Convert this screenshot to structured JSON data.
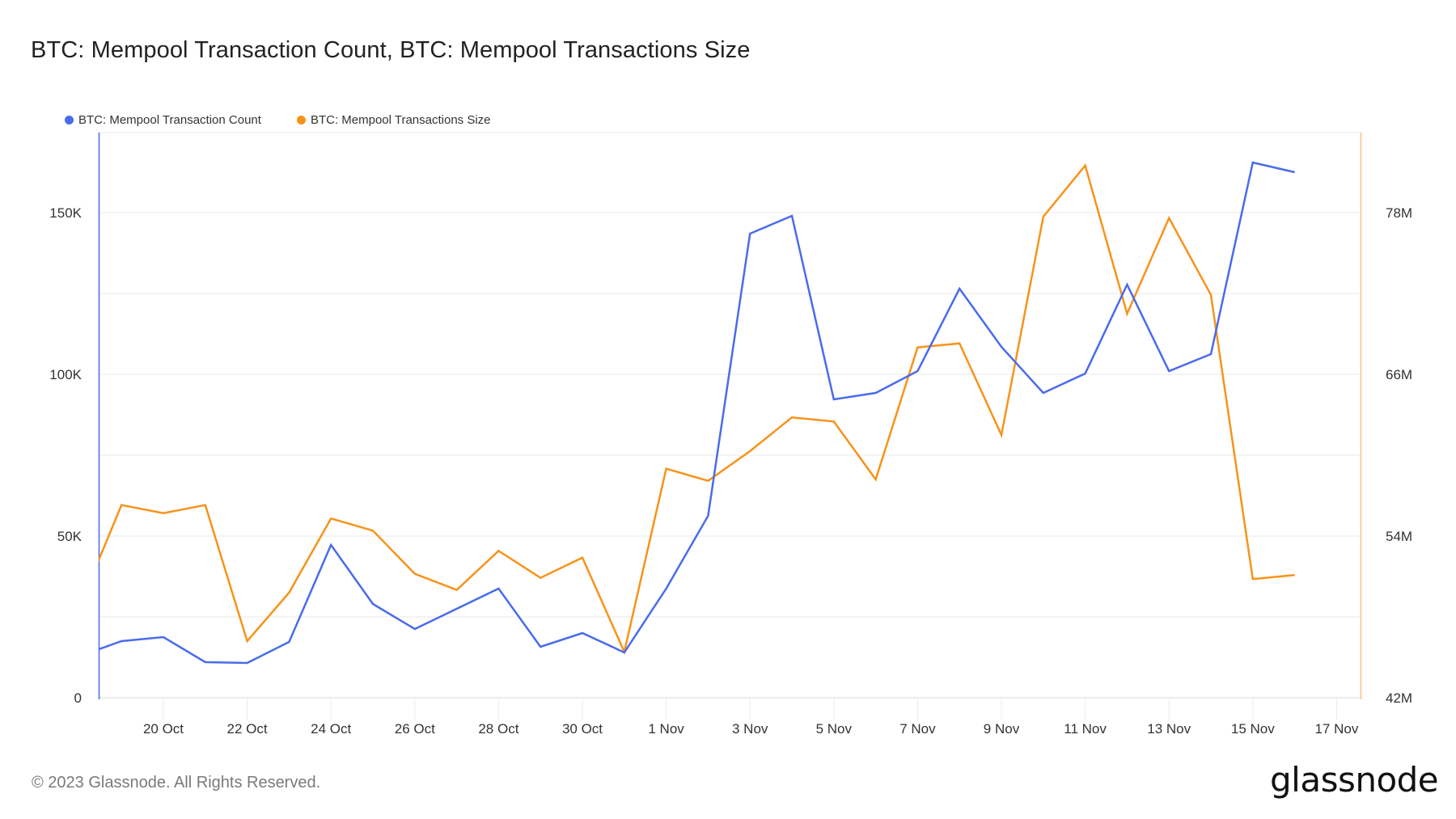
{
  "header": {
    "title": "BTC: Mempool Transaction Count, BTC: Mempool Transactions Size"
  },
  "legend": [
    {
      "label": "BTC: Mempool Transaction Count",
      "color": "#4A6BEB"
    },
    {
      "label": "BTC: Mempool Transactions Size",
      "color": "#F7931A"
    }
  ],
  "footer": {
    "copyright": "© 2023 Glassnode. All Rights Reserved.",
    "logo": "glassnode"
  },
  "chart_data": {
    "type": "line",
    "title": "BTC: Mempool Transaction Count, BTC: Mempool Transactions Size",
    "xlabel": "",
    "ylabel_left": "",
    "ylabel_right": "",
    "x": [
      "18 Oct",
      "19 Oct",
      "20 Oct",
      "21 Oct",
      "22 Oct",
      "23 Oct",
      "24 Oct",
      "25 Oct",
      "26 Oct",
      "27 Oct",
      "28 Oct",
      "29 Oct",
      "30 Oct",
      "31 Oct",
      "1 Nov",
      "2 Nov",
      "3 Nov",
      "4 Nov",
      "5 Nov",
      "6 Nov",
      "7 Nov",
      "8 Nov",
      "9 Nov",
      "10 Nov",
      "11 Nov",
      "12 Nov",
      "13 Nov",
      "14 Nov",
      "15 Nov",
      "16 Nov"
    ],
    "x_ticks": [
      "20 Oct",
      "22 Oct",
      "24 Oct",
      "26 Oct",
      "28 Oct",
      "30 Oct",
      "1 Nov",
      "3 Nov",
      "5 Nov",
      "7 Nov",
      "9 Nov",
      "11 Nov",
      "13 Nov",
      "15 Nov",
      "17 Nov"
    ],
    "y_left_ticks": [
      {
        "value": 0,
        "label": "0"
      },
      {
        "value": 50000,
        "label": "50K"
      },
      {
        "value": 100000,
        "label": "100K"
      },
      {
        "value": 150000,
        "label": "150K"
      }
    ],
    "y_right_ticks": [
      {
        "value": 42,
        "label": "42M"
      },
      {
        "value": 54,
        "label": "54M"
      },
      {
        "value": 66,
        "label": "66M"
      },
      {
        "value": 78,
        "label": "78M"
      }
    ],
    "ylim_left": [
      0,
      175000
    ],
    "ylim_right": [
      42,
      84
    ],
    "grid": true,
    "legend_position": "top-left",
    "series": [
      {
        "name": "BTC: Mempool Transaction Count",
        "axis": "left",
        "color": "#4A6BEB",
        "values": [
          12860,
          17500,
          18750,
          11000,
          10750,
          17250,
          47250,
          29000,
          21250,
          27500,
          33750,
          15750,
          20000,
          14000,
          33750,
          56250,
          143500,
          149000,
          92250,
          94250,
          101000,
          126500,
          108500,
          94250,
          100250,
          127750,
          101000,
          106250,
          165500,
          162500
        ]
      },
      {
        "name": "BTC: Mempool Transactions Size",
        "axis": "right",
        "unit": "M",
        "color": "#F7931A",
        "values": [
          48.8,
          56.3,
          55.7,
          56.3,
          46.2,
          49.8,
          55.3,
          54.4,
          51.2,
          50.0,
          52.9,
          50.9,
          52.4,
          45.4,
          59.0,
          58.1,
          60.3,
          62.8,
          62.5,
          58.2,
          68.0,
          68.3,
          61.5,
          77.7,
          81.5,
          70.5,
          77.6,
          71.9,
          50.8,
          51.1
        ]
      }
    ]
  }
}
